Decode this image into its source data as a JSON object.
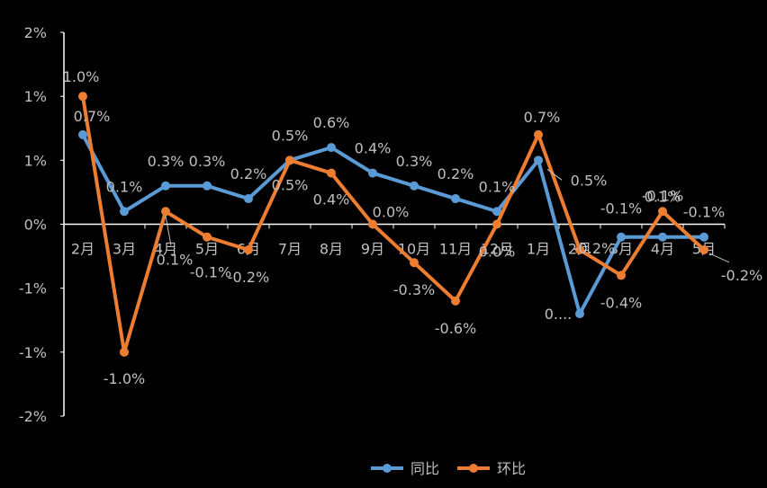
{
  "chart_data": {
    "type": "line",
    "categories": [
      "2月",
      "3月",
      "4月",
      "5月",
      "6月",
      "7月",
      "8月",
      "9月",
      "10月",
      "11月",
      "12月",
      "1月",
      "2月",
      "3月",
      "4月",
      "5月"
    ],
    "y_tick_labels": [
      "2%",
      "1%",
      "1%",
      "0%",
      "-1%",
      "-1%",
      "-2%"
    ],
    "y_ticks": [
      1.5,
      1.0,
      0.5,
      0,
      -0.5,
      -1.0,
      -1.5
    ],
    "ylim": [
      -1.5,
      1.5
    ],
    "grid": false,
    "legend_position": "bottom",
    "series": [
      {
        "name": "同比",
        "color": "#5b9bd5",
        "values": [
          0.7,
          0.1,
          0.3,
          0.3,
          0.2,
          0.5,
          0.6,
          0.4,
          0.3,
          0.2,
          0.1,
          0.5,
          -0.7,
          -0.1,
          -0.1,
          -0.1
        ],
        "labels": [
          "0.7%",
          "0.1%",
          "0.3%",
          "0.3%",
          "0.2%",
          "0.5%",
          "0.6%",
          "0.4%",
          "0.3%",
          "0.2%",
          "0.1%",
          "0.5%",
          "0....",
          "-0.1%",
          "-0.1%",
          "-0.1%"
        ]
      },
      {
        "name": "环比",
        "color": "#ed7d31",
        "values": [
          1.0,
          -1.0,
          0.1,
          -0.1,
          -0.2,
          0.5,
          0.4,
          0.0,
          -0.3,
          -0.6,
          0.0,
          0.7,
          -0.2,
          -0.4,
          0.1,
          -0.2
        ],
        "labels": [
          "1.0%",
          "-1.0%",
          "0.1%",
          "-0.1%",
          "-0.2%",
          "0.5%",
          "0.4%",
          "0.0%",
          "-0.3%",
          "-0.6%",
          "0.0%",
          "0.7%",
          "-0.2%",
          "-0.4%",
          "0.1%",
          "-0.2%"
        ]
      }
    ]
  }
}
